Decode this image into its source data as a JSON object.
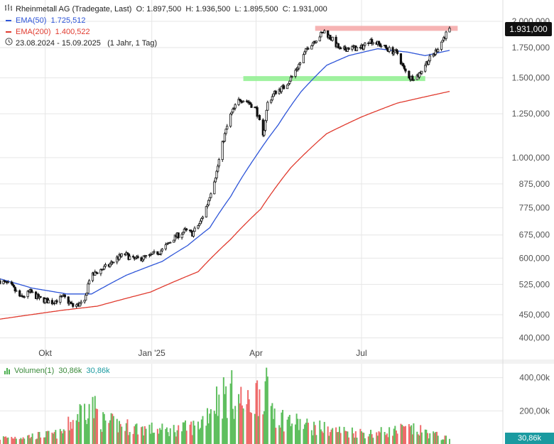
{
  "legend": {
    "title_line": "Rheinmetall AG (Tradegate, Last)",
    "ohlc": {
      "o_label": "O:",
      "o": "1.897,500",
      "h_label": "H:",
      "h": "1.936,500",
      "l_label": "L:",
      "l": "1.895,500",
      "c_label": "C:",
      "c": "1.931,000"
    },
    "ema50_label": "EMA(50)",
    "ema50_value": "1.725,512",
    "ema200_label": "EMA(200)",
    "ema200_value": "1.400,522",
    "range": "23.08.2024 - 15.09.2025",
    "period": "(1 Jahr, 1 Tag)"
  },
  "volume_legend": {
    "label": "Volumen(1)",
    "v1": "30,86k",
    "v2": "30,86k"
  },
  "price_tag": "1.931,000",
  "volume_tag": "30,86k",
  "icons": {
    "chart": "bar-chart-icon",
    "clock": "clock-icon"
  },
  "colors": {
    "ema50": "#2e55d8",
    "ema200": "#e03a2e",
    "candle": "#111111",
    "resistance": "#f4a6a6",
    "support": "#8ff08f",
    "vol_up": "#5fbf5f",
    "vol_down": "#ef6b6b"
  },
  "chart_data": [
    {
      "type": "candlestick",
      "title": "Rheinmetall AG (Tradegate, Last)",
      "scale": "log",
      "ylim": [
        360,
        2000
      ],
      "y_ticks": [
        400,
        450,
        525,
        600,
        675,
        775,
        875,
        1000,
        1250,
        1500,
        1750,
        2000
      ],
      "y_tick_labels": [
        "400,000",
        "450,000",
        "525,000",
        "600,000",
        "675,000",
        "775,000",
        "875,000",
        "1.000,000",
        "1.250,000",
        "1.500,000",
        "1.750,000",
        "2.000,000"
      ],
      "x_range": [
        "2024-08-23",
        "2025-10-31"
      ],
      "x_ticks": [
        {
          "date": "2024-10-01",
          "label": "Okt"
        },
        {
          "date": "2025-01-01",
          "label": "Jan '25"
        },
        {
          "date": "2025-04-01",
          "label": "Apr"
        },
        {
          "date": "2025-07-01",
          "label": "Jul"
        }
      ],
      "close_path": [
        [
          "2024-08-23",
          535
        ],
        [
          "2024-09-02",
          520
        ],
        [
          "2024-09-10",
          490
        ],
        [
          "2024-09-18",
          505
        ],
        [
          "2024-09-26",
          488
        ],
        [
          "2024-10-07",
          480
        ],
        [
          "2024-10-17",
          492
        ],
        [
          "2024-10-25",
          470
        ],
        [
          "2024-11-04",
          478
        ],
        [
          "2024-11-08",
          540
        ],
        [
          "2024-11-15",
          560
        ],
        [
          "2024-11-25",
          578
        ],
        [
          "2024-12-02",
          600
        ],
        [
          "2024-12-09",
          612
        ],
        [
          "2024-12-16",
          595
        ],
        [
          "2024-12-30",
          605
        ],
        [
          "2025-01-10",
          625
        ],
        [
          "2025-01-20",
          665
        ],
        [
          "2025-01-30",
          690
        ],
        [
          "2025-02-05",
          680
        ],
        [
          "2025-02-12",
          720
        ],
        [
          "2025-02-18",
          790
        ],
        [
          "2025-02-26",
          930
        ],
        [
          "2025-03-04",
          1100
        ],
        [
          "2025-03-10",
          1240
        ],
        [
          "2025-03-18",
          1350
        ],
        [
          "2025-03-25",
          1330
        ],
        [
          "2025-04-01",
          1280
        ],
        [
          "2025-04-07",
          1110
        ],
        [
          "2025-04-11",
          1320
        ],
        [
          "2025-04-18",
          1400
        ],
        [
          "2025-04-25",
          1430
        ],
        [
          "2025-05-02",
          1510
        ],
        [
          "2025-05-09",
          1620
        ],
        [
          "2025-05-16",
          1760
        ],
        [
          "2025-05-23",
          1830
        ],
        [
          "2025-05-30",
          1900
        ],
        [
          "2025-06-06",
          1820
        ],
        [
          "2025-06-13",
          1720
        ],
        [
          "2025-06-20",
          1750
        ],
        [
          "2025-06-30",
          1740
        ],
        [
          "2025-07-08",
          1820
        ],
        [
          "2025-07-16",
          1780
        ],
        [
          "2025-07-25",
          1730
        ],
        [
          "2025-08-01",
          1700
        ],
        [
          "2025-08-07",
          1560
        ],
        [
          "2025-08-12",
          1500
        ],
        [
          "2025-08-19",
          1520
        ],
        [
          "2025-08-26",
          1620
        ],
        [
          "2025-09-02",
          1700
        ],
        [
          "2025-09-09",
          1820
        ],
        [
          "2025-09-15",
          1931
        ]
      ],
      "ema50": [
        [
          "2024-08-23",
          540
        ],
        [
          "2024-09-20",
          515
        ],
        [
          "2024-10-20",
          500
        ],
        [
          "2024-11-10",
          500
        ],
        [
          "2024-12-10",
          550
        ],
        [
          "2025-01-10",
          590
        ],
        [
          "2025-02-01",
          640
        ],
        [
          "2025-02-20",
          700
        ],
        [
          "2025-03-10",
          820
        ],
        [
          "2025-03-31",
          1000
        ],
        [
          "2025-04-20",
          1180
        ],
        [
          "2025-05-10",
          1400
        ],
        [
          "2025-06-01",
          1600
        ],
        [
          "2025-06-20",
          1680
        ],
        [
          "2025-07-15",
          1740
        ],
        [
          "2025-08-10",
          1710
        ],
        [
          "2025-08-25",
          1680
        ],
        [
          "2025-09-15",
          1725.512
        ]
      ],
      "ema200": [
        [
          "2024-08-23",
          440
        ],
        [
          "2024-10-15",
          460
        ],
        [
          "2024-11-15",
          470
        ],
        [
          "2024-12-31",
          505
        ],
        [
          "2025-02-10",
          560
        ],
        [
          "2025-03-10",
          660
        ],
        [
          "2025-04-05",
          770
        ],
        [
          "2025-05-01",
          950
        ],
        [
          "2025-06-01",
          1130
        ],
        [
          "2025-07-01",
          1230
        ],
        [
          "2025-08-01",
          1320
        ],
        [
          "2025-09-15",
          1400.522
        ]
      ],
      "resistance": {
        "from": "2025-05-22",
        "to": "2025-09-22",
        "value": 1930
      },
      "support": {
        "from": "2025-03-21",
        "to": "2025-08-25",
        "value": 1495
      },
      "last_value": 1931
    },
    {
      "type": "bar",
      "title": "Volumen(1)",
      "y_ticks": [
        200000,
        400000
      ],
      "y_tick_labels": [
        "200,00k",
        "400,00k"
      ],
      "ylim": [
        0,
        450000
      ],
      "volume_path": [
        [
          "2024-08-23",
          40000
        ],
        [
          "2024-09-15",
          50000
        ],
        [
          "2024-10-15",
          70000
        ],
        [
          "2024-11-08",
          280000
        ],
        [
          "2024-11-20",
          150000
        ],
        [
          "2024-12-15",
          110000
        ],
        [
          "2025-01-15",
          90000
        ],
        [
          "2025-02-10",
          120000
        ],
        [
          "2025-02-26",
          300000
        ],
        [
          "2025-03-10",
          340000
        ],
        [
          "2025-03-25",
          250000
        ],
        [
          "2025-04-07",
          390000
        ],
        [
          "2025-04-20",
          180000
        ],
        [
          "2025-05-15",
          120000
        ],
        [
          "2025-06-10",
          90000
        ],
        [
          "2025-07-10",
          70000
        ],
        [
          "2025-08-10",
          100000
        ],
        [
          "2025-08-25",
          80000
        ],
        [
          "2025-09-15",
          30860
        ]
      ]
    }
  ]
}
